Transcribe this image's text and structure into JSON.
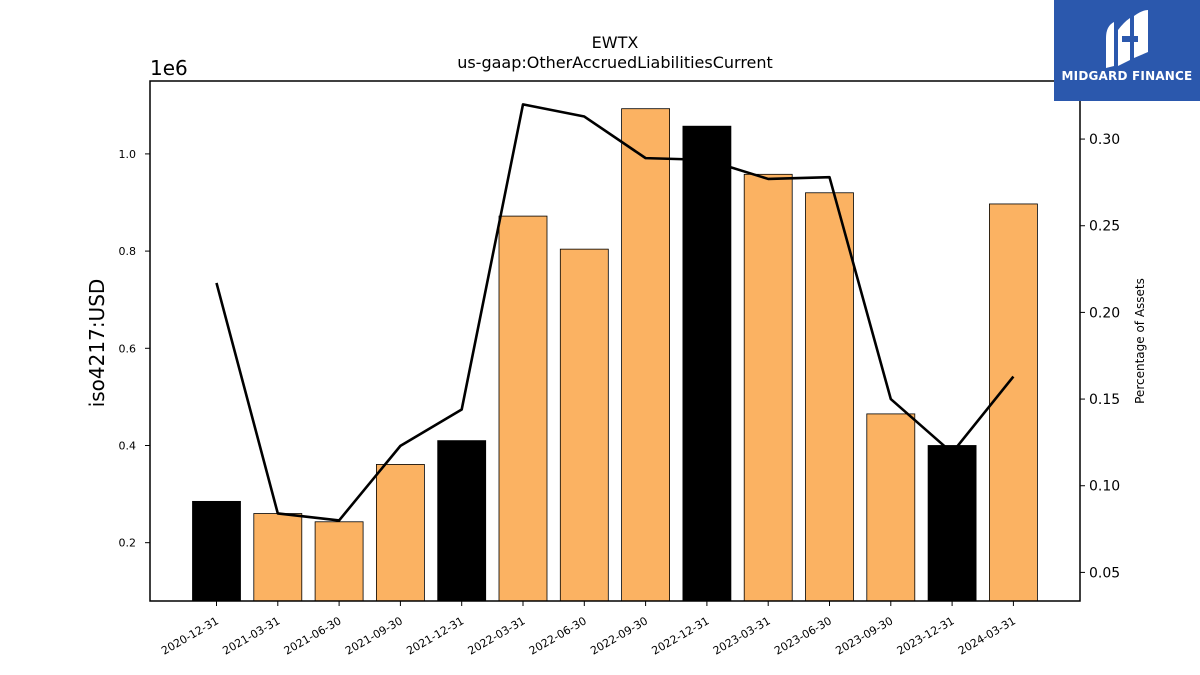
{
  "chart_data": {
    "type": "bar",
    "title": "EWTX",
    "subtitle": "us-gaap:OtherAccruedLiabilitiesCurrent",
    "ylabel": "iso4217:USD",
    "ylabel_right": "Percentage of Assets",
    "y_offset_label": "1e6",
    "categories": [
      "2020-12-31",
      "2021-03-31",
      "2021-06-30",
      "2021-09-30",
      "2021-12-31",
      "2022-03-31",
      "2022-06-30",
      "2022-09-30",
      "2022-12-31",
      "2023-03-31",
      "2023-06-30",
      "2023-09-30",
      "2023-12-31",
      "2024-03-31"
    ],
    "values": [
      285000,
      260000,
      243000,
      361000,
      410000,
      872000,
      804000,
      1093000,
      1057000,
      958000,
      920000,
      465000,
      400000,
      897000
    ],
    "bar_colors": [
      "#000000",
      "#fbb262",
      "#fbb262",
      "#fbb262",
      "#000000",
      "#fbb262",
      "#fbb262",
      "#fbb262",
      "#000000",
      "#fbb262",
      "#fbb262",
      "#fbb262",
      "#000000",
      "#fbb262"
    ],
    "ylim": [
      80000,
      1150000
    ],
    "yticks": [
      0.2,
      0.4,
      0.6,
      0.8,
      1.0
    ],
    "yticks_labels": [
      "0.2",
      "0.4",
      "0.6",
      "0.8",
      "1.0"
    ],
    "line_series": {
      "name": "Percentage of Assets",
      "values": [
        0.217,
        0.084,
        0.08,
        0.123,
        0.144,
        0.32,
        0.313,
        0.289,
        0.288,
        0.277,
        0.278,
        0.15,
        0.119,
        0.163
      ]
    },
    "ylim_right": [
      0.0335,
      0.3335
    ],
    "yticks_right": [
      0.05,
      0.1,
      0.15,
      0.2,
      0.25,
      0.3
    ],
    "yticks_right_labels": [
      "0.05",
      "0.10",
      "0.15",
      "0.20",
      "0.25",
      "0.30"
    ],
    "grid": false
  },
  "logo": {
    "text": "MIDGARD FINANCE",
    "icon": "midgard-logo-icon",
    "color": "#2b58ad"
  }
}
